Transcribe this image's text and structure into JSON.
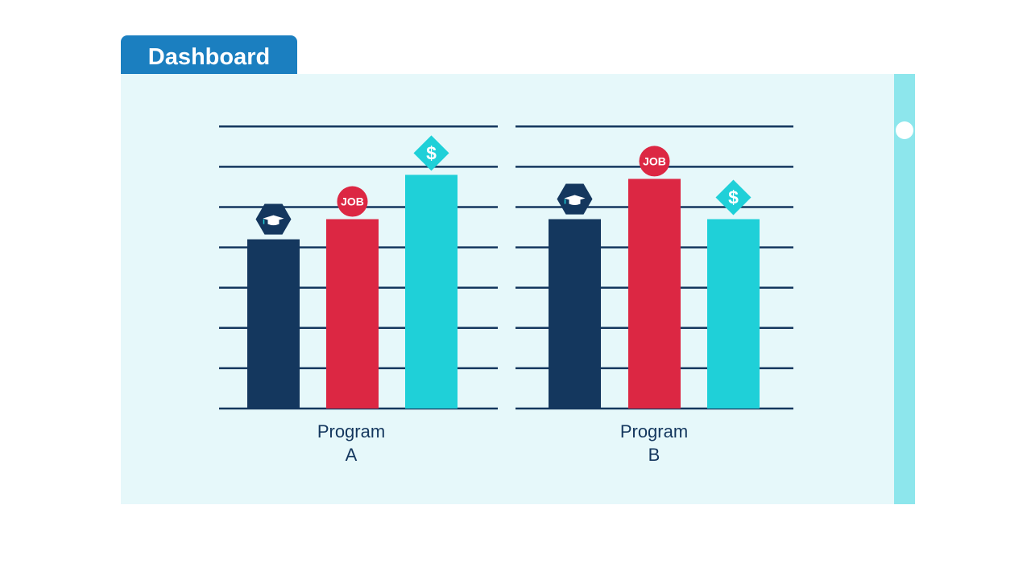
{
  "header": {
    "tab_label": "Dashboard"
  },
  "colors": {
    "tab": "#1b7fc0",
    "panel": "#e6f8fa",
    "scrollbar": "#8de6ec",
    "education": "#14375e",
    "job": "#dc2743",
    "income": "#1fd0d8",
    "gridline": "#14375e"
  },
  "chart_data": [
    {
      "type": "bar",
      "categories": [
        "education",
        "job",
        "income"
      ],
      "icons": [
        "graduation-cap-icon",
        "job-badge-icon",
        "dollar-diamond-icon"
      ],
      "icon_text": [
        "",
        "JOB",
        "$"
      ],
      "values": [
        4.2,
        4.7,
        5.8
      ],
      "xlabel_lines": [
        "Program",
        "A"
      ],
      "ylim": [
        0,
        7
      ],
      "grid": true
    },
    {
      "type": "bar",
      "categories": [
        "education",
        "job",
        "income"
      ],
      "icons": [
        "graduation-cap-icon",
        "job-badge-icon",
        "dollar-diamond-icon"
      ],
      "icon_text": [
        "",
        "JOB",
        "$"
      ],
      "values": [
        4.7,
        5.7,
        4.7
      ],
      "xlabel_lines": [
        "Program",
        "B"
      ],
      "ylim": [
        0,
        7
      ],
      "grid": true
    }
  ]
}
